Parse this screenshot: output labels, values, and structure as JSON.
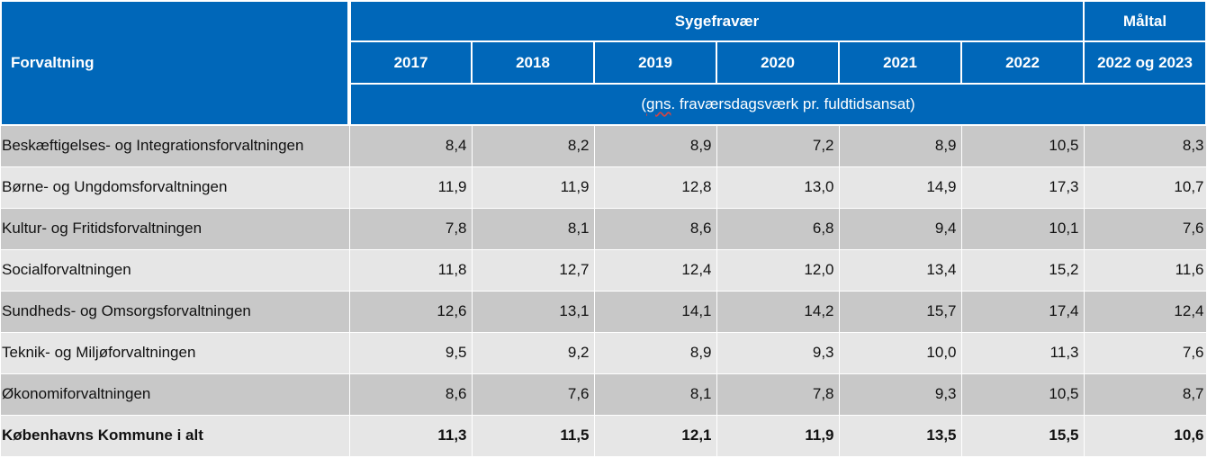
{
  "header": {
    "row_label": "Forvaltning",
    "group_label": "Sygefravær",
    "target_label": "Måltal",
    "years": [
      "2017",
      "2018",
      "2019",
      "2020",
      "2021",
      "2022"
    ],
    "target_year": "2022 og 2023",
    "unit_prefix": "(",
    "unit_marked": "gns",
    "unit_rest": ". fraværsdagsværk pr. fuldtidsansat)"
  },
  "rows": [
    {
      "name": "Beskæftigelses- og Integrationsforvaltningen",
      "values": [
        "8,4",
        "8,2",
        "8,9",
        "7,2",
        "8,9",
        "10,5",
        "8,3"
      ]
    },
    {
      "name": "Børne- og Ungdomsforvaltningen",
      "values": [
        "11,9",
        "11,9",
        "12,8",
        "13,0",
        "14,9",
        "17,3",
        "10,7"
      ]
    },
    {
      "name": "Kultur- og Fritidsforvaltningen",
      "values": [
        "7,8",
        "8,1",
        "8,6",
        "6,8",
        "9,4",
        "10,1",
        "7,6"
      ]
    },
    {
      "name": "Socialforvaltningen",
      "values": [
        "11,8",
        "12,7",
        "12,4",
        "12,0",
        "13,4",
        "15,2",
        "11,6"
      ]
    },
    {
      "name": "Sundheds- og Omsorgsforvaltningen",
      "values": [
        "12,6",
        "13,1",
        "14,1",
        "14,2",
        "15,7",
        "17,4",
        "12,4"
      ]
    },
    {
      "name": "Teknik- og Miljøforvaltningen",
      "values": [
        "9,5",
        "9,2",
        "8,9",
        "9,3",
        "10,0",
        "11,3",
        "7,6"
      ]
    },
    {
      "name": "Økonomiforvaltningen",
      "values": [
        "8,6",
        "7,6",
        "8,1",
        "7,8",
        "9,3",
        "10,5",
        "8,7"
      ]
    },
    {
      "name": "Københavns Kommune i alt",
      "values": [
        "11,3",
        "11,5",
        "12,1",
        "11,9",
        "13,5",
        "15,5",
        "10,6"
      ]
    }
  ],
  "colors": {
    "header_blue": "#0067b9",
    "row_dark": "#c8c8c8",
    "row_light": "#e6e6e6"
  }
}
